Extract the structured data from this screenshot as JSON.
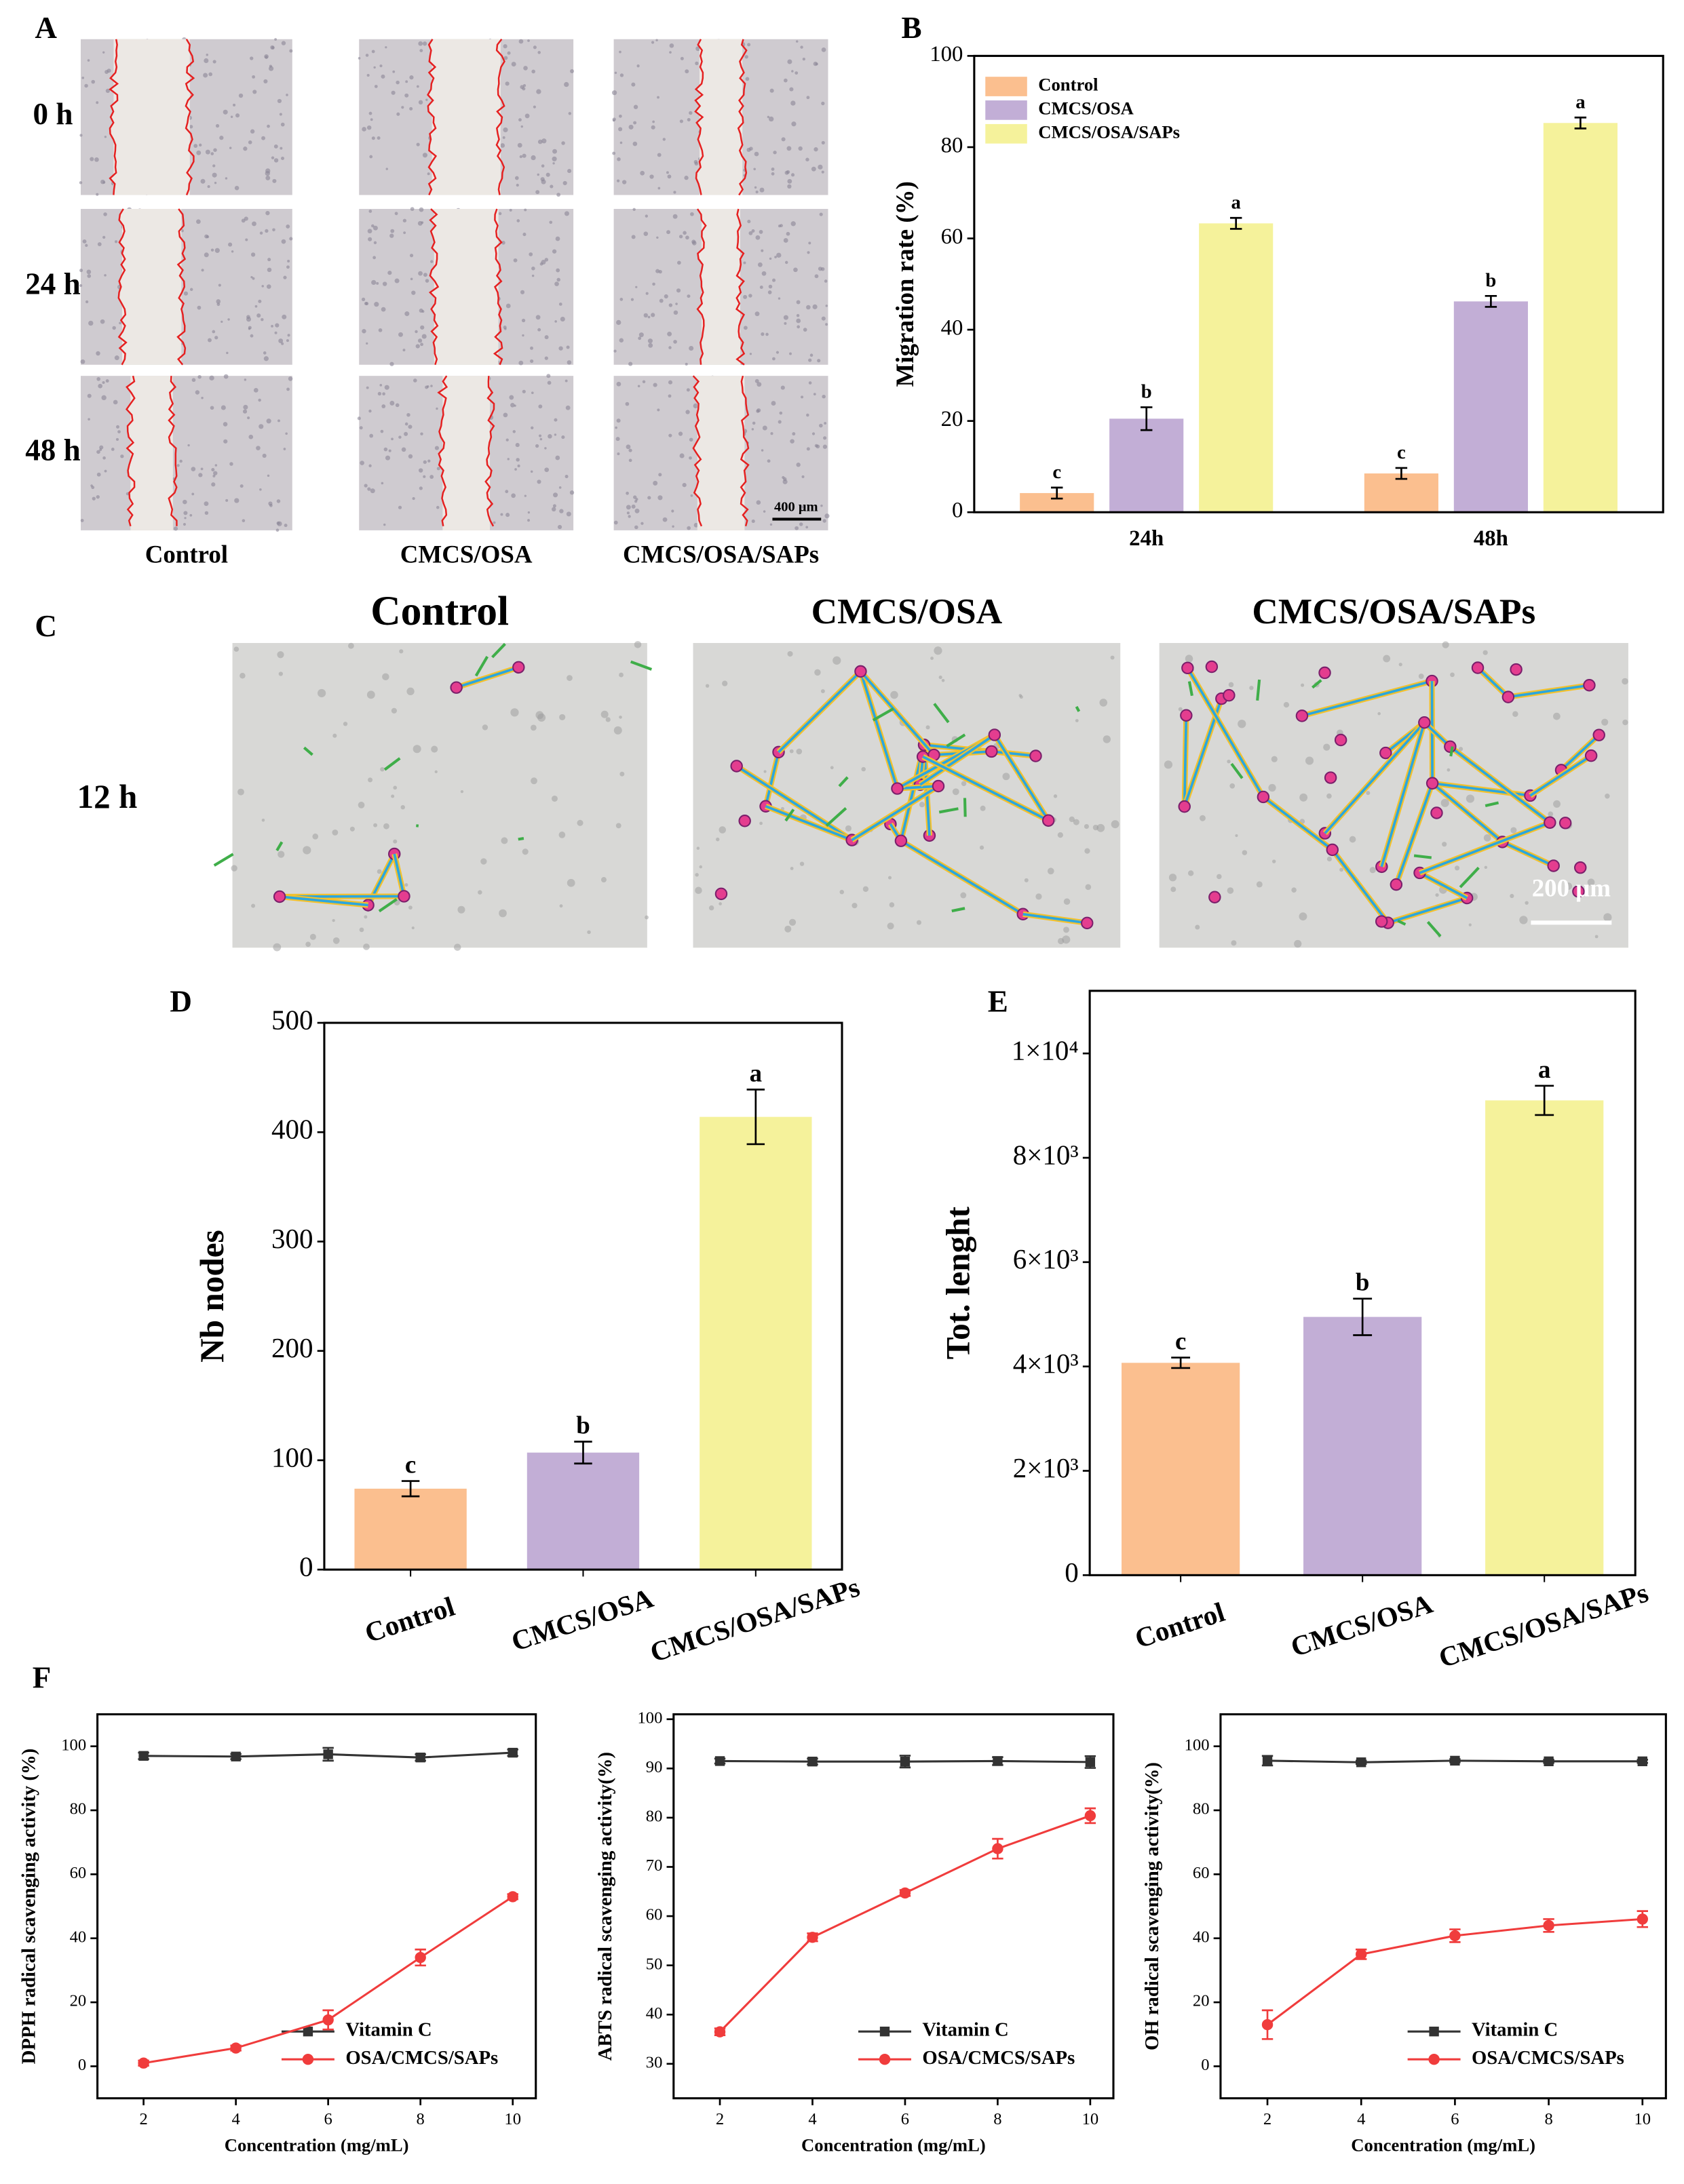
{
  "figure_images": {
    "A": {
      "panel": "A",
      "rows": [
        "0 h",
        "24 h",
        "48 h"
      ],
      "columns": [
        "Control",
        "CMCS/OSA",
        "CMCS/OSA/SAPs"
      ],
      "scale_bar": "400 μm"
    },
    "C": {
      "panel": "C",
      "rows": [
        "12 h"
      ],
      "columns": [
        "Control",
        "CMCS/OSA",
        "CMCS/OSA/SAPs"
      ],
      "scale_bar": "200 μm"
    }
  },
  "chart_data": [
    {
      "type": "bar",
      "panel": "B",
      "ylabel": "Migration rate (%)",
      "categories": [
        "24h",
        "48h"
      ],
      "series": [
        {
          "name": "Control",
          "color": "#fbbf8f",
          "values": [
            4.2,
            8.5
          ],
          "errors": [
            1.2,
            1.2
          ],
          "annotations": [
            "c",
            "c"
          ]
        },
        {
          "name": "CMCS/OSA",
          "color": "#c2aed6",
          "values": [
            20.5,
            46.2
          ],
          "errors": [
            2.5,
            1.2
          ],
          "annotations": [
            "b",
            "b"
          ]
        },
        {
          "name": "CMCS/OSA/SAPs",
          "color": "#f5f29b",
          "values": [
            63.3,
            85.3
          ],
          "errors": [
            1.2,
            1.2
          ],
          "annotations": [
            "a",
            "a"
          ]
        }
      ],
      "ylim": [
        0,
        100
      ],
      "yticks": [
        0,
        20,
        40,
        60,
        80,
        100
      ],
      "legend": "upper left"
    },
    {
      "type": "bar",
      "panel": "D",
      "ylabel": "Nb nodes",
      "categories": [
        "Control",
        "CMCS/OSA",
        "CMCS/OSA/SAPs"
      ],
      "values": [
        74,
        107,
        414
      ],
      "errors": [
        7,
        10,
        25
      ],
      "annotations": [
        "c",
        "b",
        "a"
      ],
      "colors": [
        "#fbbf8f",
        "#c2aed6",
        "#f5f29b"
      ],
      "ylim": [
        0,
        500
      ],
      "yticks": [
        0,
        100,
        200,
        300,
        400,
        500
      ]
    },
    {
      "type": "bar",
      "panel": "E",
      "ylabel": "Tot. lenght",
      "categories": [
        "Control",
        "CMCS/OSA",
        "CMCS/OSA/SAPs"
      ],
      "values": [
        4070,
        4950,
        9100
      ],
      "errors": [
        100,
        350,
        280
      ],
      "annotations": [
        "c",
        "b",
        "a"
      ],
      "colors": [
        "#fbbf8f",
        "#c2aed6",
        "#f5f29b"
      ],
      "ylim": [
        0,
        11200
      ],
      "yticks": [
        0,
        {
          "value": 2000,
          "label": "2×10³"
        },
        {
          "value": 4000,
          "label": "4×10³"
        },
        {
          "value": 6000,
          "label": "6×10³"
        },
        {
          "value": 8000,
          "label": "8×10³"
        },
        {
          "value": 10000,
          "label": "1×10⁴"
        }
      ]
    },
    {
      "type": "line",
      "panel": "F",
      "ylabel": "DPPH radical scavenging activity (%)",
      "xlabel": "Concentration (mg/mL)",
      "x": [
        2,
        4,
        6,
        8,
        10
      ],
      "series": [
        {
          "name": "Vitamin C",
          "color": "#333333",
          "marker": "square",
          "values": [
            97,
            96.8,
            97.5,
            96.5,
            98
          ],
          "errors": [
            1,
            0.8,
            2,
            1,
            1
          ]
        },
        {
          "name": "OSA/CMCS/SAPs",
          "color": "#f03c3c",
          "marker": "circle",
          "values": [
            1,
            5.7,
            14.5,
            34,
            53
          ],
          "errors": [
            0.8,
            0.8,
            3,
            2.5,
            0.8
          ]
        }
      ],
      "xlim": [
        1,
        10.5
      ],
      "xticks": [
        2,
        4,
        6,
        8,
        10
      ],
      "ylim": [
        -10,
        110
      ],
      "yticks": [
        0,
        20,
        40,
        60,
        80,
        100
      ],
      "legend": "lower right"
    },
    {
      "type": "line",
      "ylabel": "ABTS radical scavenging activity(%)",
      "xlabel": "Concentration (mg/mL)",
      "x": [
        2,
        4,
        6,
        8,
        10
      ],
      "series": [
        {
          "name": "Vitamin C",
          "color": "#333333",
          "marker": "square",
          "values": [
            91.5,
            91.4,
            91.4,
            91.5,
            91.3
          ],
          "errors": [
            0.5,
            0.6,
            1.2,
            0.8,
            1.2
          ]
        },
        {
          "name": "OSA/CMCS/SAPs",
          "color": "#f03c3c",
          "marker": "circle",
          "values": [
            36.5,
            55.7,
            64.7,
            73.7,
            80.4
          ],
          "errors": [
            0.7,
            0.8,
            0.6,
            2,
            1.5
          ]
        }
      ],
      "xlim": [
        1,
        10.5
      ],
      "xticks": [
        2,
        4,
        6,
        8,
        10
      ],
      "ylim": [
        23,
        101
      ],
      "yticks": [
        30,
        40,
        50,
        60,
        70,
        80,
        90,
        100
      ],
      "legend": "lower right"
    },
    {
      "type": "line",
      "ylabel": "OH radical scavenging activity(%)",
      "xlabel": "Concentration (mg/mL)",
      "x": [
        2,
        4,
        6,
        8,
        10
      ],
      "series": [
        {
          "name": "Vitamin C",
          "color": "#333333",
          "marker": "square",
          "values": [
            95.5,
            95,
            95.5,
            95.3,
            95.3
          ],
          "errors": [
            1.5,
            0.5,
            0.5,
            0.5,
            0.5
          ]
        },
        {
          "name": "OSA/CMCS/SAPs",
          "color": "#f03c3c",
          "marker": "circle",
          "values": [
            13,
            35,
            40.8,
            44,
            46
          ],
          "errors": [
            4.5,
            1.5,
            2,
            2,
            2.5
          ]
        }
      ],
      "xlim": [
        1,
        10.5
      ],
      "xticks": [
        2,
        4,
        6,
        8,
        10
      ],
      "ylim": [
        -10,
        110
      ],
      "yticks": [
        0,
        20,
        40,
        60,
        80,
        100
      ],
      "legend": "lower right"
    }
  ]
}
